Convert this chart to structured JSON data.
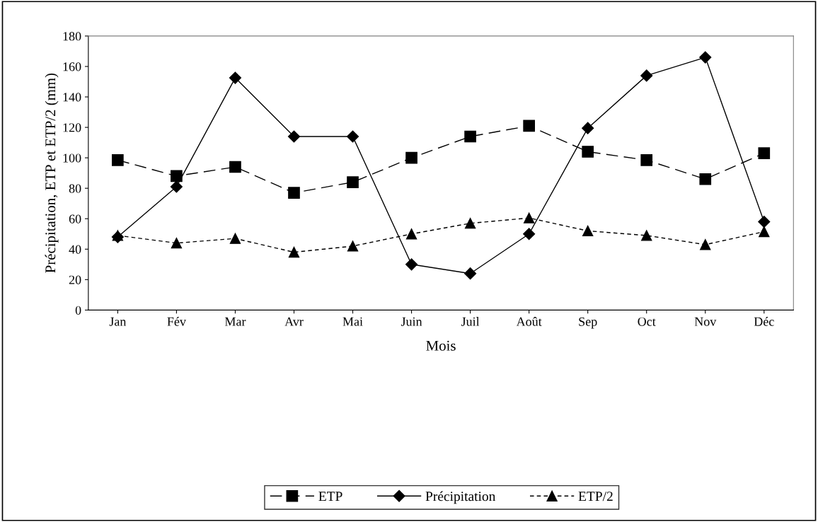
{
  "chart_data": {
    "type": "line",
    "xlabel": "Mois",
    "ylabel": "Précipitation, ETP et ETP/2 (mm)",
    "categories": [
      "Jan",
      "Fév",
      "Mar",
      "Avr",
      "Mai",
      "Juin",
      "Juil",
      "Août",
      "Sep",
      "Oct",
      "Nov",
      "Déc"
    ],
    "series": [
      {
        "name": "ETP",
        "color": "#000000",
        "marker": "square",
        "line_style": "dashed",
        "values": [
          98.5,
          88,
          94,
          77,
          84,
          100,
          114,
          121,
          104,
          98.5,
          86,
          103
        ]
      },
      {
        "name": "Précipitation",
        "color": "#000000",
        "marker": "diamond",
        "line_style": "solid",
        "values": [
          48,
          81,
          152.5,
          114,
          114,
          30,
          24,
          50,
          119.5,
          154,
          166,
          58
        ]
      },
      {
        "name": "ETP/2",
        "color": "#000000",
        "marker": "triangle",
        "line_style": "dotted",
        "values": [
          49,
          44,
          47,
          38,
          42,
          50,
          57,
          60.5,
          52,
          49,
          43,
          51.5
        ]
      }
    ],
    "ylim": [
      0,
      180
    ],
    "yticks": [
      0,
      20,
      40,
      60,
      80,
      100,
      120,
      140,
      160,
      180
    ],
    "grid": false,
    "legend": "bottom"
  }
}
